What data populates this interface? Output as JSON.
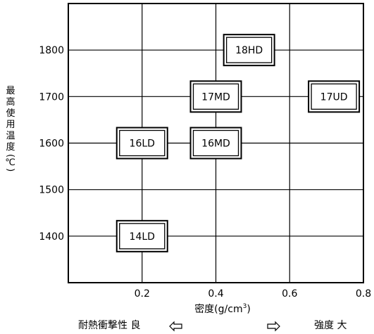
{
  "chart_data": {
    "type": "scatter",
    "y_axis_label_chars": [
      "最",
      "高",
      "使",
      "用",
      "温",
      "度"
    ],
    "y_axis_label_unit": "(℃)",
    "x_axis_label": "密度(g/cm",
    "x_axis_label_sup": "3",
    "x_axis_label_close": ")",
    "x_ticks": [
      {
        "value": 0.2,
        "label": "0.2"
      },
      {
        "value": 0.4,
        "label": "0.4"
      },
      {
        "value": 0.6,
        "label": "0.6"
      },
      {
        "value": 0.8,
        "label": "0.8"
      }
    ],
    "y_ticks": [
      {
        "value": 1400,
        "label": "1400"
      },
      {
        "value": 1500,
        "label": "1500"
      },
      {
        "value": 1600,
        "label": "1600"
      },
      {
        "value": 1700,
        "label": "1700"
      },
      {
        "value": 1800,
        "label": "1800"
      }
    ],
    "xlim": [
      0.0,
      0.8
    ],
    "ylim": [
      1300,
      1900
    ],
    "grid": true,
    "points": [
      {
        "label": "18HD",
        "x": 0.49,
        "y": 1800
      },
      {
        "label": "17MD",
        "x": 0.4,
        "y": 1700
      },
      {
        "label": "17UD",
        "x": 0.72,
        "y": 1700
      },
      {
        "label": "16LD",
        "x": 0.2,
        "y": 1600
      },
      {
        "label": "16MD",
        "x": 0.4,
        "y": 1600
      },
      {
        "label": "14LD",
        "x": 0.2,
        "y": 1400
      }
    ],
    "bottom_left_text": "耐熱衝撃性 良",
    "bottom_right_text": "強度 大"
  }
}
